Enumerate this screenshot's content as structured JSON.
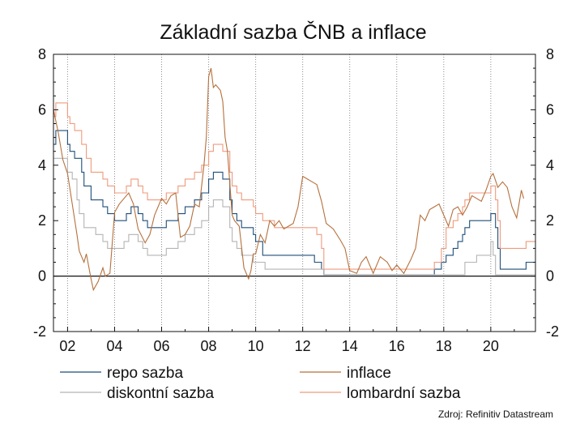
{
  "chart_data": {
    "type": "line",
    "title": "Základní sazba ČNB a inflace",
    "xlabel": "",
    "ylabel": "",
    "x_tick_labels": [
      "02",
      "04",
      "06",
      "08",
      "10",
      "12",
      "14",
      "16",
      "18",
      "20"
    ],
    "x_ticks": [
      2002,
      2004,
      2006,
      2008,
      2010,
      2012,
      2014,
      2016,
      2018,
      2020
    ],
    "xlim": [
      2001.4,
      2021.9
    ],
    "ylim": [
      -2,
      8
    ],
    "y_ticks": [
      -2,
      0,
      2,
      4,
      6,
      8
    ],
    "y_tick_labels": [
      "-2",
      "0",
      "2",
      "4",
      "6",
      "8"
    ],
    "grid": "vertical dotted",
    "legend_position": "bottom",
    "source": "Zdroj: Refinitiv Datastream",
    "colors": {
      "repo": "#1f4e79",
      "inflace": "#b5703c",
      "diskont": "#b4b4b4",
      "lombard": "#ef9a7c"
    },
    "series": [
      {
        "name": "repo sazba",
        "key": "repo",
        "step": true,
        "points": [
          [
            2001.4,
            4.75
          ],
          [
            2001.5,
            5.25
          ],
          [
            2002.0,
            4.75
          ],
          [
            2002.1,
            4.5
          ],
          [
            2002.3,
            4.25
          ],
          [
            2002.6,
            3.75
          ],
          [
            2002.7,
            3.25
          ],
          [
            2003.0,
            2.75
          ],
          [
            2003.5,
            2.5
          ],
          [
            2003.7,
            2.25
          ],
          [
            2004.0,
            2.0
          ],
          [
            2004.5,
            2.25
          ],
          [
            2004.7,
            2.5
          ],
          [
            2005.0,
            2.25
          ],
          [
            2005.2,
            2.0
          ],
          [
            2005.4,
            1.75
          ],
          [
            2006.2,
            2.0
          ],
          [
            2006.7,
            2.25
          ],
          [
            2007.0,
            2.5
          ],
          [
            2007.4,
            2.75
          ],
          [
            2007.7,
            3.0
          ],
          [
            2008.0,
            3.5
          ],
          [
            2008.2,
            3.75
          ],
          [
            2008.6,
            3.5
          ],
          [
            2008.9,
            2.75
          ],
          [
            2009.0,
            2.25
          ],
          [
            2009.2,
            2.0
          ],
          [
            2009.4,
            1.75
          ],
          [
            2009.9,
            1.5
          ],
          [
            2010.0,
            1.25
          ],
          [
            2010.3,
            0.75
          ],
          [
            2012.5,
            0.5
          ],
          [
            2012.8,
            0.25
          ],
          [
            2012.9,
            0.05
          ],
          [
            2017.6,
            0.25
          ],
          [
            2017.9,
            0.5
          ],
          [
            2018.1,
            0.75
          ],
          [
            2018.4,
            1.0
          ],
          [
            2018.6,
            1.25
          ],
          [
            2018.8,
            1.5
          ],
          [
            2018.9,
            1.75
          ],
          [
            2019.1,
            2.0
          ],
          [
            2020.0,
            2.25
          ],
          [
            2020.2,
            1.75
          ],
          [
            2020.3,
            1.0
          ],
          [
            2020.4,
            0.25
          ],
          [
            2021.5,
            0.5
          ]
        ]
      },
      {
        "name": "diskontní sazba",
        "key": "diskont",
        "step": true,
        "points": [
          [
            2001.4,
            4.25
          ],
          [
            2002.0,
            3.75
          ],
          [
            2002.2,
            3.5
          ],
          [
            2002.4,
            2.75
          ],
          [
            2002.5,
            2.25
          ],
          [
            2002.7,
            1.75
          ],
          [
            2003.2,
            1.5
          ],
          [
            2003.5,
            1.25
          ],
          [
            2003.7,
            1.0
          ],
          [
            2004.4,
            1.25
          ],
          [
            2004.6,
            1.5
          ],
          [
            2005.0,
            1.25
          ],
          [
            2005.2,
            1.0
          ],
          [
            2005.4,
            0.75
          ],
          [
            2006.2,
            1.0
          ],
          [
            2006.7,
            1.25
          ],
          [
            2007.0,
            1.5
          ],
          [
            2007.4,
            1.75
          ],
          [
            2007.7,
            2.0
          ],
          [
            2008.0,
            2.5
          ],
          [
            2008.2,
            2.75
          ],
          [
            2008.6,
            2.5
          ],
          [
            2008.9,
            1.75
          ],
          [
            2009.0,
            1.25
          ],
          [
            2009.2,
            1.0
          ],
          [
            2009.4,
            0.75
          ],
          [
            2009.9,
            0.5
          ],
          [
            2010.4,
            0.25
          ],
          [
            2012.9,
            0.05
          ],
          [
            2018.9,
            0.5
          ],
          [
            2019.4,
            0.75
          ],
          [
            2020.0,
            1.25
          ],
          [
            2020.1,
            0.75
          ],
          [
            2020.2,
            0.05
          ],
          [
            2021.5,
            0.05
          ]
        ]
      },
      {
        "name": "lombardní sazba",
        "key": "lombard",
        "step": true,
        "points": [
          [
            2001.4,
            5.75
          ],
          [
            2001.5,
            6.25
          ],
          [
            2002.0,
            5.75
          ],
          [
            2002.1,
            5.5
          ],
          [
            2002.3,
            5.25
          ],
          [
            2002.6,
            4.75
          ],
          [
            2002.8,
            4.25
          ],
          [
            2003.0,
            3.75
          ],
          [
            2003.5,
            3.5
          ],
          [
            2003.7,
            3.25
          ],
          [
            2004.0,
            3.0
          ],
          [
            2004.5,
            3.25
          ],
          [
            2004.7,
            3.5
          ],
          [
            2005.0,
            3.25
          ],
          [
            2005.2,
            3.0
          ],
          [
            2005.4,
            2.75
          ],
          [
            2006.2,
            3.0
          ],
          [
            2006.7,
            3.25
          ],
          [
            2007.0,
            3.5
          ],
          [
            2007.4,
            3.75
          ],
          [
            2007.7,
            4.0
          ],
          [
            2008.0,
            4.5
          ],
          [
            2008.2,
            4.75
          ],
          [
            2008.6,
            4.5
          ],
          [
            2008.9,
            3.75
          ],
          [
            2009.0,
            3.25
          ],
          [
            2009.2,
            3.0
          ],
          [
            2009.4,
            2.75
          ],
          [
            2009.9,
            2.5
          ],
          [
            2010.0,
            2.25
          ],
          [
            2010.3,
            2.0
          ],
          [
            2010.8,
            1.75
          ],
          [
            2012.6,
            1.5
          ],
          [
            2012.8,
            1.0
          ],
          [
            2012.9,
            0.25
          ],
          [
            2017.6,
            0.5
          ],
          [
            2017.9,
            1.0
          ],
          [
            2018.1,
            1.75
          ],
          [
            2018.4,
            2.0
          ],
          [
            2018.6,
            2.25
          ],
          [
            2018.8,
            2.5
          ],
          [
            2018.9,
            2.75
          ],
          [
            2019.1,
            3.0
          ],
          [
            2020.0,
            3.25
          ],
          [
            2020.2,
            2.75
          ],
          [
            2020.3,
            2.0
          ],
          [
            2020.4,
            1.0
          ],
          [
            2021.5,
            1.25
          ]
        ]
      },
      {
        "name": "inflace",
        "key": "inflace",
        "step": false,
        "points": [
          [
            2001.4,
            6.0
          ],
          [
            2001.6,
            5.2
          ],
          [
            2001.8,
            4.2
          ],
          [
            2002.0,
            3.7
          ],
          [
            2002.2,
            2.6
          ],
          [
            2002.4,
            1.5
          ],
          [
            2002.5,
            0.9
          ],
          [
            2002.6,
            0.7
          ],
          [
            2002.7,
            0.5
          ],
          [
            2002.8,
            0.8
          ],
          [
            2003.0,
            -0.1
          ],
          [
            2003.1,
            -0.5
          ],
          [
            2003.3,
            -0.2
          ],
          [
            2003.5,
            0.3
          ],
          [
            2003.6,
            0.0
          ],
          [
            2003.8,
            0.1
          ],
          [
            2004.0,
            2.3
          ],
          [
            2004.2,
            2.6
          ],
          [
            2004.4,
            2.8
          ],
          [
            2004.6,
            3.0
          ],
          [
            2004.8,
            2.6
          ],
          [
            2005.0,
            1.7
          ],
          [
            2005.3,
            1.2
          ],
          [
            2005.5,
            1.5
          ],
          [
            2005.7,
            2.2
          ],
          [
            2006.0,
            2.8
          ],
          [
            2006.2,
            2.6
          ],
          [
            2006.4,
            2.9
          ],
          [
            2006.6,
            3.0
          ],
          [
            2006.8,
            1.4
          ],
          [
            2007.0,
            1.5
          ],
          [
            2007.2,
            1.8
          ],
          [
            2007.4,
            2.6
          ],
          [
            2007.6,
            2.5
          ],
          [
            2007.8,
            4.0
          ],
          [
            2007.9,
            5.0
          ],
          [
            2008.0,
            7.2
          ],
          [
            2008.1,
            7.5
          ],
          [
            2008.2,
            6.8
          ],
          [
            2008.3,
            6.9
          ],
          [
            2008.5,
            6.7
          ],
          [
            2008.6,
            6.3
          ],
          [
            2008.7,
            5.0
          ],
          [
            2008.8,
            4.5
          ],
          [
            2009.0,
            2.2
          ],
          [
            2009.1,
            2.0
          ],
          [
            2009.3,
            1.8
          ],
          [
            2009.5,
            0.3
          ],
          [
            2009.7,
            -0.1
          ],
          [
            2009.8,
            0.2
          ],
          [
            2009.9,
            0.8
          ],
          [
            2010.0,
            0.8
          ],
          [
            2010.2,
            1.5
          ],
          [
            2010.4,
            1.2
          ],
          [
            2010.6,
            2.0
          ],
          [
            2010.8,
            1.8
          ],
          [
            2011.0,
            2.0
          ],
          [
            2011.2,
            1.7
          ],
          [
            2011.4,
            1.8
          ],
          [
            2011.6,
            1.9
          ],
          [
            2011.8,
            2.5
          ],
          [
            2012.0,
            3.6
          ],
          [
            2012.2,
            3.5
          ],
          [
            2012.4,
            3.4
          ],
          [
            2012.6,
            3.3
          ],
          [
            2012.8,
            2.7
          ],
          [
            2013.0,
            1.9
          ],
          [
            2013.3,
            1.7
          ],
          [
            2013.6,
            1.3
          ],
          [
            2013.8,
            1.0
          ],
          [
            2014.0,
            0.2
          ],
          [
            2014.3,
            0.1
          ],
          [
            2014.5,
            0.5
          ],
          [
            2014.7,
            0.7
          ],
          [
            2015.0,
            0.1
          ],
          [
            2015.3,
            0.7
          ],
          [
            2015.6,
            0.5
          ],
          [
            2015.8,
            0.2
          ],
          [
            2016.0,
            0.4
          ],
          [
            2016.3,
            0.1
          ],
          [
            2016.6,
            0.6
          ],
          [
            2016.8,
            1.0
          ],
          [
            2017.0,
            2.2
          ],
          [
            2017.2,
            2.0
          ],
          [
            2017.4,
            2.4
          ],
          [
            2017.6,
            2.5
          ],
          [
            2017.8,
            2.6
          ],
          [
            2018.0,
            2.2
          ],
          [
            2018.2,
            1.8
          ],
          [
            2018.4,
            2.4
          ],
          [
            2018.6,
            2.5
          ],
          [
            2018.8,
            2.2
          ],
          [
            2019.0,
            2.5
          ],
          [
            2019.2,
            2.9
          ],
          [
            2019.4,
            2.8
          ],
          [
            2019.6,
            2.7
          ],
          [
            2019.8,
            3.1
          ],
          [
            2020.0,
            3.6
          ],
          [
            2020.1,
            3.7
          ],
          [
            2020.3,
            3.2
          ],
          [
            2020.5,
            3.4
          ],
          [
            2020.7,
            3.2
          ],
          [
            2020.9,
            2.5
          ],
          [
            2021.1,
            2.1
          ],
          [
            2021.3,
            3.1
          ],
          [
            2021.4,
            2.8
          ]
        ]
      }
    ]
  }
}
